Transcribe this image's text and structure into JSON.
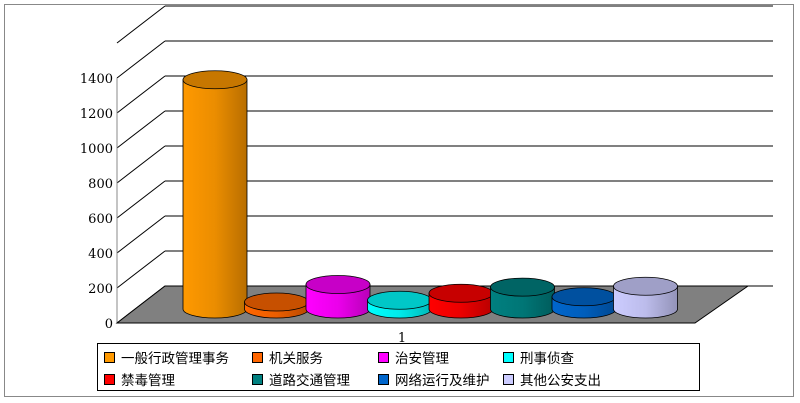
{
  "chart_data": {
    "type": "bar",
    "style": "3d-cylinder",
    "categories": [
      "1"
    ],
    "series": [
      {
        "name": "一般行政管理事务",
        "values": [
          1310
        ],
        "color": "#ff9900"
      },
      {
        "name": "机关服务",
        "values": [
          40
        ],
        "color": "#ff6600"
      },
      {
        "name": "治安管理",
        "values": [
          140
        ],
        "color": "#ff00ff"
      },
      {
        "name": "刑事侦查",
        "values": [
          50
        ],
        "color": "#00ffff"
      },
      {
        "name": "禁毒管理",
        "values": [
          90
        ],
        "color": "#ff0000"
      },
      {
        "name": "道路交通管理",
        "values": [
          125
        ],
        "color": "#008080"
      },
      {
        "name": "网络运行及维护",
        "values": [
          70
        ],
        "color": "#0066cc"
      },
      {
        "name": "其他公安支出",
        "values": [
          130
        ],
        "color": "#ccccff"
      }
    ],
    "yticks": [
      "0",
      "200",
      "400",
      "600",
      "800",
      "1000",
      "1200",
      "1400"
    ],
    "ylim": [
      0,
      1600
    ],
    "grid": true,
    "legend": "bottom",
    "floor_color": "#808080"
  }
}
